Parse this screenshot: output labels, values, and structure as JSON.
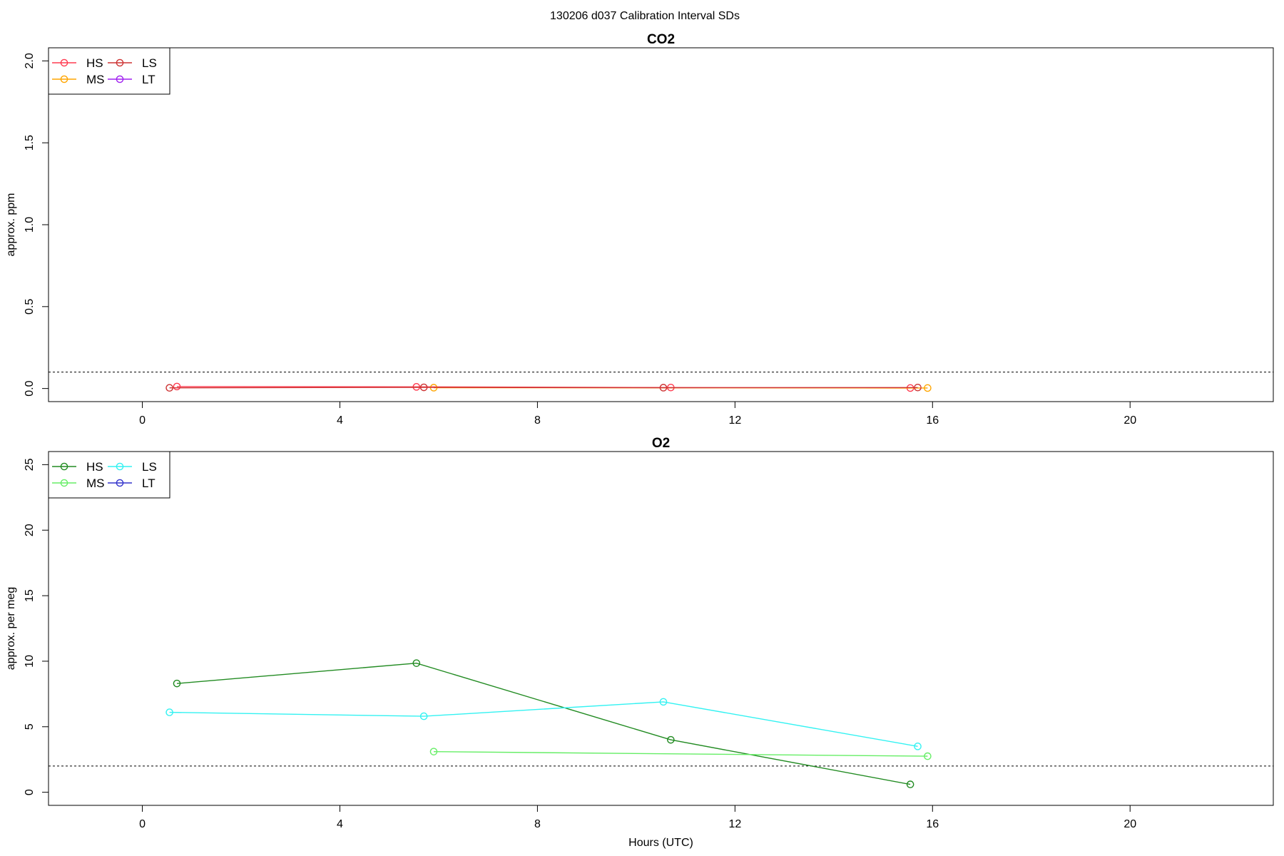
{
  "page_title": "130206   d037   Calibration Interval SDs",
  "chart_data": [
    {
      "type": "line",
      "title": "CO2",
      "xlabel": "",
      "ylabel": "approx. ppm",
      "xlim": [
        -1.9,
        22.9
      ],
      "ylim": [
        -0.08,
        2.08
      ],
      "xticks": [
        0,
        4,
        8,
        12,
        16,
        20
      ],
      "yticks": [
        0.0,
        0.5,
        1.0,
        1.5,
        2.0
      ],
      "ytick_labels": [
        "0.0",
        "0.5",
        "1.0",
        "1.5",
        "2.0"
      ],
      "reference_line": 0.1,
      "legend_position": "top-left",
      "legend_columns": 2,
      "series": [
        {
          "name": "HS",
          "color": "#ff3b50",
          "x": [
            0.7,
            5.55,
            10.7,
            15.55
          ],
          "y": [
            0.012,
            0.01,
            0.006,
            0.003
          ]
        },
        {
          "name": "MS",
          "color": "#ffa500",
          "x": [
            5.9,
            15.9
          ],
          "y": [
            0.005,
            0.003
          ]
        },
        {
          "name": "LS",
          "color": "#cd3333",
          "x": [
            0.55,
            5.7,
            10.55,
            15.7
          ],
          "y": [
            0.004,
            0.007,
            0.005,
            0.006
          ]
        },
        {
          "name": "LT",
          "color": "#a020f0",
          "x": [],
          "y": []
        }
      ]
    },
    {
      "type": "line",
      "title": "O2",
      "xlabel": "Hours (UTC)",
      "ylabel": "approx. per meg",
      "xlim": [
        -1.9,
        22.9
      ],
      "ylim": [
        -1.0,
        26.0
      ],
      "xticks": [
        0,
        4,
        8,
        12,
        16,
        20
      ],
      "yticks": [
        0,
        5,
        10,
        15,
        20,
        25
      ],
      "ytick_labels": [
        "0",
        "5",
        "10",
        "15",
        "20",
        "25"
      ],
      "reference_line": 2.0,
      "legend_position": "top-left",
      "legend_columns": 2,
      "series": [
        {
          "name": "HS",
          "color": "#228b22",
          "x": [
            0.7,
            5.55,
            10.7,
            15.55
          ],
          "y": [
            8.3,
            9.85,
            4.0,
            0.6
          ]
        },
        {
          "name": "MS",
          "color": "#66ee66",
          "x": [
            5.9,
            15.9
          ],
          "y": [
            3.1,
            2.75
          ]
        },
        {
          "name": "LS",
          "color": "#33f2f2",
          "x": [
            0.55,
            5.7,
            10.55,
            15.7
          ],
          "y": [
            6.1,
            5.8,
            6.9,
            3.5
          ]
        },
        {
          "name": "LT",
          "color": "#3333cc",
          "x": [],
          "y": []
        }
      ]
    }
  ]
}
